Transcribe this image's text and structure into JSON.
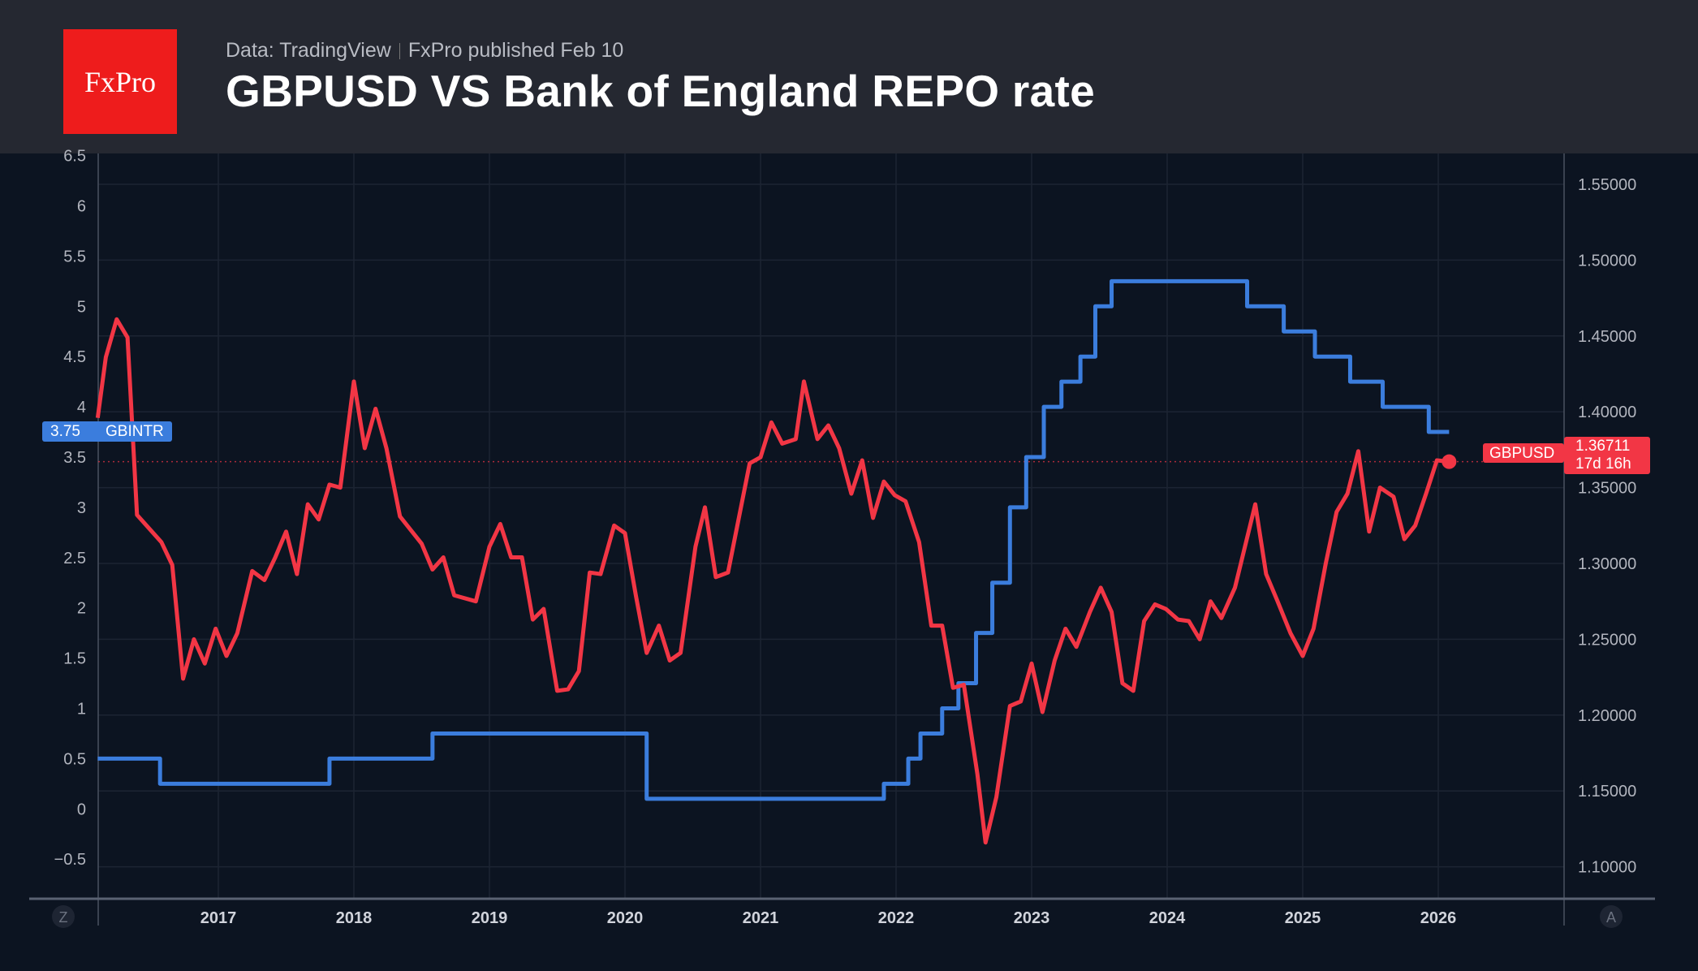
{
  "header": {
    "logo_text": "FxPro",
    "source": "Data: TradingView",
    "published": "FxPro published Feb 10",
    "title": "GBPUSD VS Bank of England REPO rate"
  },
  "colors": {
    "repo": "#3b7ddd",
    "gbpusd": "#f23645",
    "background": "#0c1421",
    "header": "#252831",
    "logo": "#ee1c1c"
  },
  "chart_data": {
    "type": "line",
    "title": "GBPUSD VS Bank of England REPO rate",
    "x_ticks": [
      "2017",
      "2018",
      "2019",
      "2020",
      "2021",
      "2022",
      "2023",
      "2024",
      "2025",
      "2026"
    ],
    "left_axis": {
      "ticks": [
        "6.5",
        "6",
        "5.5",
        "5",
        "4.5",
        "4",
        "3.5",
        "3",
        "2.5",
        "2",
        "1.5",
        "1",
        "0.5",
        "0",
        "−0.5"
      ],
      "range": [
        -0.75,
        6.5
      ]
    },
    "right_axis": {
      "ticks": [
        "1.55000",
        "1.50000",
        "1.45000",
        "1.40000",
        "1.35000",
        "1.30000",
        "1.25000",
        "1.20000",
        "1.15000",
        "1.10000"
      ],
      "range": [
        1.08,
        1.56
      ]
    },
    "grid": true,
    "series": [
      {
        "name": "GBINTR",
        "axis": "left",
        "style": "step",
        "last_value": "3.75",
        "points": [
          [
            2016.11,
            0.5
          ],
          [
            2016.57,
            0.25
          ],
          [
            2017.82,
            0.5
          ],
          [
            2018.58,
            0.75
          ],
          [
            2020.16,
            0.1
          ],
          [
            2021.91,
            0.25
          ],
          [
            2022.09,
            0.5
          ],
          [
            2022.18,
            0.75
          ],
          [
            2022.34,
            1.0
          ],
          [
            2022.46,
            1.25
          ],
          [
            2022.59,
            1.75
          ],
          [
            2022.71,
            2.25
          ],
          [
            2022.84,
            3.0
          ],
          [
            2022.96,
            3.5
          ],
          [
            2023.09,
            4.0
          ],
          [
            2023.22,
            4.25
          ],
          [
            2023.36,
            4.5
          ],
          [
            2023.47,
            5.0
          ],
          [
            2023.59,
            5.25
          ],
          [
            2024.59,
            5.0
          ],
          [
            2024.86,
            4.75
          ],
          [
            2025.09,
            4.5
          ],
          [
            2025.35,
            4.25
          ],
          [
            2025.59,
            4.0
          ],
          [
            2025.93,
            3.75
          ],
          [
            2026.08,
            3.75
          ]
        ]
      },
      {
        "name": "GBPUSD",
        "axis": "right",
        "style": "line",
        "last_value": "1.36711",
        "countdown": "17d 16h",
        "points": [
          [
            2016.11,
            1.396
          ],
          [
            2016.17,
            1.436
          ],
          [
            2016.25,
            1.461
          ],
          [
            2016.33,
            1.449
          ],
          [
            2016.4,
            1.332
          ],
          [
            2016.58,
            1.314
          ],
          [
            2016.66,
            1.299
          ],
          [
            2016.74,
            1.224
          ],
          [
            2016.82,
            1.25
          ],
          [
            2016.9,
            1.234
          ],
          [
            2016.98,
            1.257
          ],
          [
            2017.06,
            1.239
          ],
          [
            2017.14,
            1.254
          ],
          [
            2017.25,
            1.295
          ],
          [
            2017.34,
            1.289
          ],
          [
            2017.42,
            1.304
          ],
          [
            2017.5,
            1.321
          ],
          [
            2017.58,
            1.293
          ],
          [
            2017.66,
            1.339
          ],
          [
            2017.74,
            1.329
          ],
          [
            2017.82,
            1.352
          ],
          [
            2017.9,
            1.35
          ],
          [
            2018.0,
            1.42
          ],
          [
            2018.08,
            1.376
          ],
          [
            2018.16,
            1.402
          ],
          [
            2018.24,
            1.376
          ],
          [
            2018.34,
            1.331
          ],
          [
            2018.5,
            1.313
          ],
          [
            2018.58,
            1.296
          ],
          [
            2018.66,
            1.304
          ],
          [
            2018.74,
            1.279
          ],
          [
            2018.9,
            1.275
          ],
          [
            2019.0,
            1.311
          ],
          [
            2019.08,
            1.326
          ],
          [
            2019.16,
            1.304
          ],
          [
            2019.24,
            1.304
          ],
          [
            2019.32,
            1.263
          ],
          [
            2019.4,
            1.27
          ],
          [
            2019.5,
            1.216
          ],
          [
            2019.58,
            1.217
          ],
          [
            2019.66,
            1.229
          ],
          [
            2019.74,
            1.294
          ],
          [
            2019.82,
            1.293
          ],
          [
            2019.92,
            1.325
          ],
          [
            2020.0,
            1.32
          ],
          [
            2020.08,
            1.279
          ],
          [
            2020.16,
            1.241
          ],
          [
            2020.25,
            1.259
          ],
          [
            2020.33,
            1.236
          ],
          [
            2020.41,
            1.241
          ],
          [
            2020.52,
            1.311
          ],
          [
            2020.59,
            1.337
          ],
          [
            2020.67,
            1.291
          ],
          [
            2020.76,
            1.294
          ],
          [
            2020.92,
            1.366
          ],
          [
            2021.0,
            1.37
          ],
          [
            2021.08,
            1.393
          ],
          [
            2021.16,
            1.379
          ],
          [
            2021.26,
            1.382
          ],
          [
            2021.32,
            1.42
          ],
          [
            2021.42,
            1.382
          ],
          [
            2021.5,
            1.391
          ],
          [
            2021.58,
            1.376
          ],
          [
            2021.67,
            1.346
          ],
          [
            2021.75,
            1.368
          ],
          [
            2021.83,
            1.33
          ],
          [
            2021.91,
            1.354
          ],
          [
            2021.99,
            1.345
          ],
          [
            2022.07,
            1.341
          ],
          [
            2022.17,
            1.314
          ],
          [
            2022.26,
            1.259
          ],
          [
            2022.34,
            1.259
          ],
          [
            2022.42,
            1.218
          ],
          [
            2022.5,
            1.22
          ],
          [
            2022.6,
            1.161
          ],
          [
            2022.66,
            1.116
          ],
          [
            2022.74,
            1.146
          ],
          [
            2022.84,
            1.206
          ],
          [
            2022.92,
            1.209
          ],
          [
            2023.0,
            1.234
          ],
          [
            2023.08,
            1.202
          ],
          [
            2023.17,
            1.236
          ],
          [
            2023.25,
            1.257
          ],
          [
            2023.33,
            1.245
          ],
          [
            2023.43,
            1.268
          ],
          [
            2023.51,
            1.284
          ],
          [
            2023.59,
            1.268
          ],
          [
            2023.67,
            1.221
          ],
          [
            2023.75,
            1.216
          ],
          [
            2023.83,
            1.262
          ],
          [
            2023.91,
            1.273
          ],
          [
            2023.99,
            1.27
          ],
          [
            2024.08,
            1.263
          ],
          [
            2024.16,
            1.262
          ],
          [
            2024.24,
            1.25
          ],
          [
            2024.32,
            1.275
          ],
          [
            2024.4,
            1.264
          ],
          [
            2024.5,
            1.284
          ],
          [
            2024.65,
            1.339
          ],
          [
            2024.73,
            1.293
          ],
          [
            2024.81,
            1.276
          ],
          [
            2024.91,
            1.254
          ],
          [
            2025.0,
            1.239
          ],
          [
            2025.08,
            1.257
          ],
          [
            2025.17,
            1.3
          ],
          [
            2025.25,
            1.334
          ],
          [
            2025.33,
            1.346
          ],
          [
            2025.41,
            1.374
          ],
          [
            2025.49,
            1.321
          ],
          [
            2025.57,
            1.35
          ],
          [
            2025.67,
            1.344
          ],
          [
            2025.75,
            1.316
          ],
          [
            2025.83,
            1.325
          ],
          [
            2025.91,
            1.346
          ],
          [
            2025.99,
            1.368
          ],
          [
            2026.08,
            1.36711
          ]
        ]
      }
    ]
  },
  "axis_buttons": {
    "left": "Z",
    "right": "A"
  }
}
